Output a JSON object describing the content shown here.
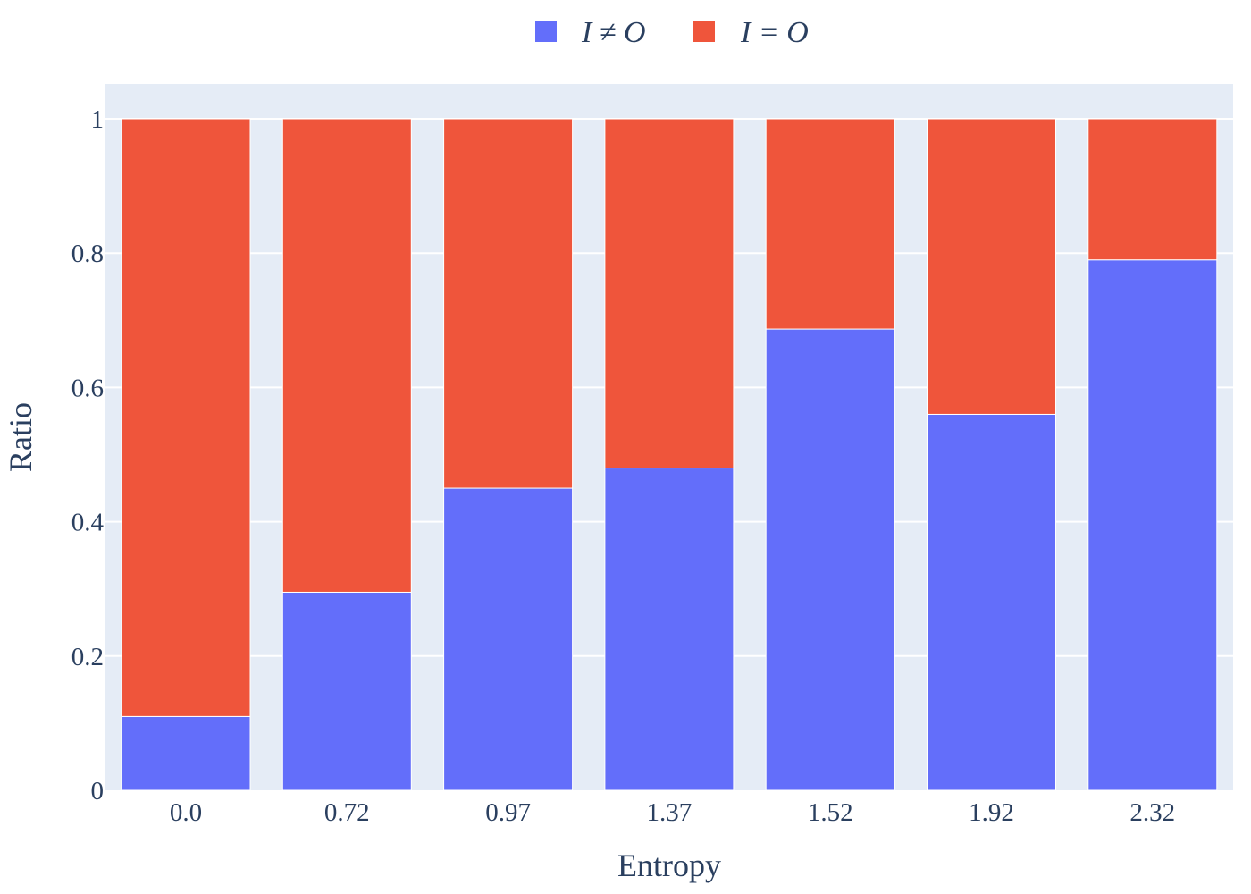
{
  "chart_data": {
    "type": "bar",
    "stacked": true,
    "categories": [
      "0.0",
      "0.72",
      "0.97",
      "1.37",
      "1.52",
      "1.92",
      "2.32"
    ],
    "series": [
      {
        "name": "I ≠ O",
        "color": "#636efa",
        "values": [
          0.11,
          0.295,
          0.45,
          0.48,
          0.687,
          0.56,
          0.79
        ]
      },
      {
        "name": "I = O",
        "color": "#ef553b",
        "values": [
          0.89,
          0.705,
          0.55,
          0.52,
          0.313,
          0.44,
          0.21
        ]
      }
    ],
    "title": "",
    "xlabel": "Entropy",
    "ylabel": "Ratio",
    "ylim": [
      0,
      1.05
    ],
    "yticks": [
      {
        "value": 0,
        "label": "0"
      },
      {
        "value": 0.2,
        "label": "0.2"
      },
      {
        "value": 0.4,
        "label": "0.4"
      },
      {
        "value": 0.6,
        "label": "0.6"
      },
      {
        "value": 0.8,
        "label": "0.8"
      },
      {
        "value": 1,
        "label": "1"
      }
    ],
    "grid": true,
    "legend_position": "top-center",
    "plot_background": "#e5ecf6",
    "gridline_color": "#ffffff",
    "text_color": "#2a3f5f"
  }
}
